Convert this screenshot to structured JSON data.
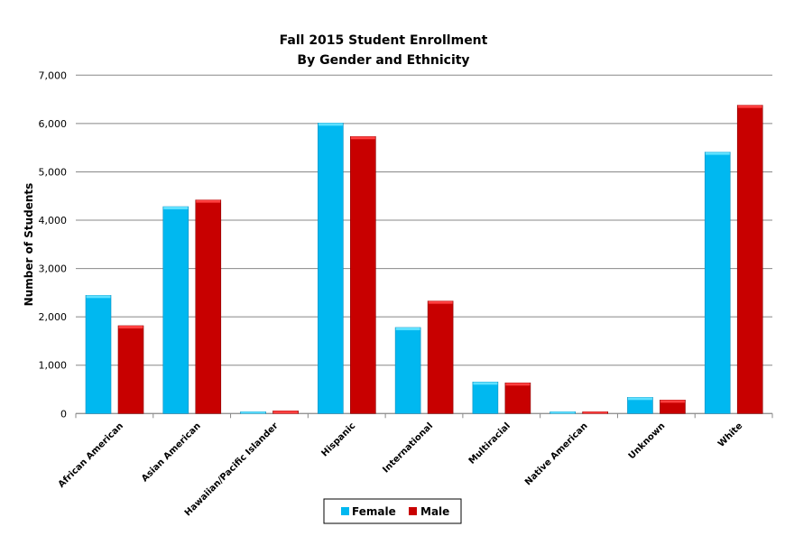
{
  "chart_data": {
    "type": "bar",
    "title": "Fall 2015 Student Enrollment",
    "subtitle": "By Gender and Ethnicity",
    "xlabel": "",
    "ylabel": "Number of Students",
    "ylim": [
      0,
      7000
    ],
    "yticks": [
      0,
      1000,
      2000,
      3000,
      4000,
      5000,
      6000,
      7000
    ],
    "ytick_labels": [
      "0",
      "1,000",
      "2,000",
      "3,000",
      "4,000",
      "5,000",
      "6,000",
      "7,000"
    ],
    "grid": true,
    "legend_position": "bottom",
    "categories": [
      "African American",
      "Asian American",
      "Hawaiian/Pacific Islander",
      "Hispanic",
      "International",
      "Multiracial",
      "Native American",
      "Unknown",
      "White"
    ],
    "series": [
      {
        "name": "Female",
        "color": "#00b8f0",
        "values": [
          2445,
          4280,
          37,
          6010,
          1780,
          653,
          37,
          336,
          5408
        ]
      },
      {
        "name": "Male",
        "color": "#c80000",
        "values": [
          1817,
          4418,
          56,
          5731,
          2327,
          635,
          37,
          280,
          6378
        ]
      }
    ]
  }
}
